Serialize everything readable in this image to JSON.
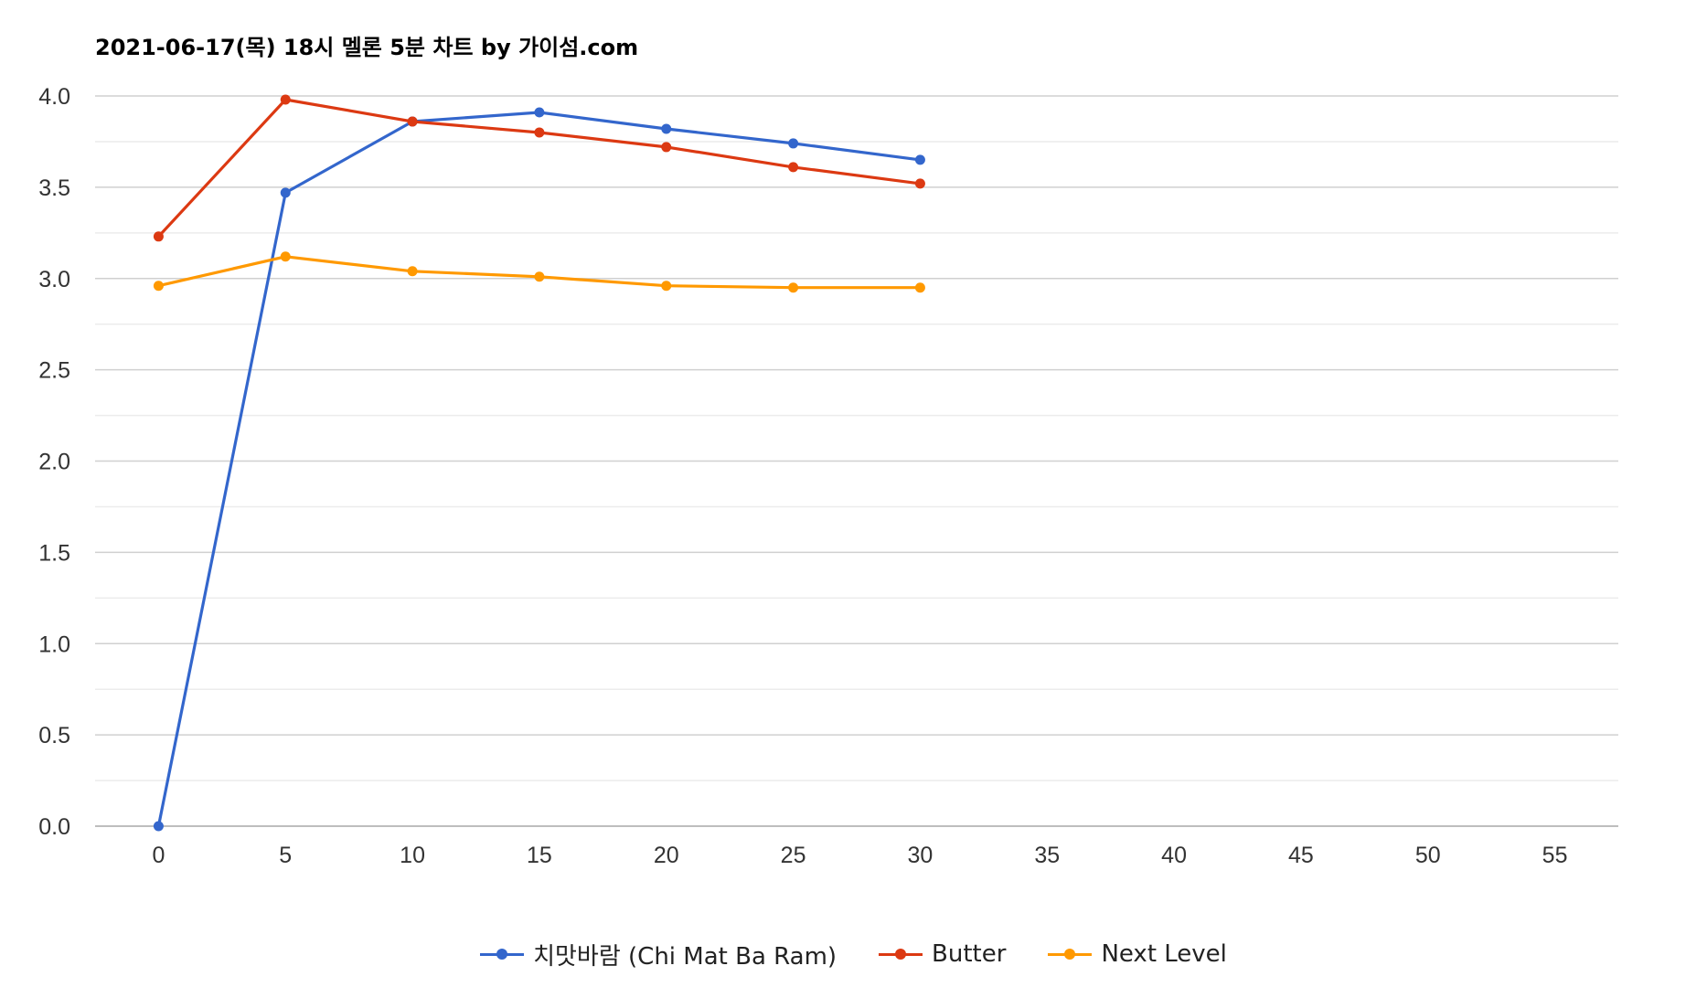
{
  "chart_data": {
    "type": "line",
    "title": "2021-06-17(목) 18시 멜론 5분 차트 by 가이섬.com",
    "xlabel": "",
    "ylabel": "",
    "x_ticks": [
      0,
      5,
      10,
      15,
      20,
      25,
      30,
      35,
      40,
      45,
      50,
      55
    ],
    "y_ticks": [
      0.0,
      0.5,
      1.0,
      1.5,
      2.0,
      2.5,
      3.0,
      3.5,
      4.0
    ],
    "xlim": [
      -2.5,
      57.5
    ],
    "ylim": [
      0,
      4.0
    ],
    "grid": true,
    "legend_position": "bottom",
    "x": [
      0,
      5,
      10,
      15,
      20,
      25,
      30
    ],
    "series": [
      {
        "name": "치맛바람 (Chi Mat Ba Ram)",
        "color": "#3366cc",
        "values": [
          0.0,
          3.47,
          3.86,
          3.91,
          3.82,
          3.74,
          3.65
        ]
      },
      {
        "name": "Butter",
        "color": "#dc3912",
        "values": [
          3.23,
          3.98,
          3.86,
          3.8,
          3.72,
          3.61,
          3.52
        ]
      },
      {
        "name": "Next Level",
        "color": "#ff9900",
        "values": [
          2.96,
          3.12,
          3.04,
          3.01,
          2.96,
          2.95,
          2.95
        ]
      }
    ]
  }
}
